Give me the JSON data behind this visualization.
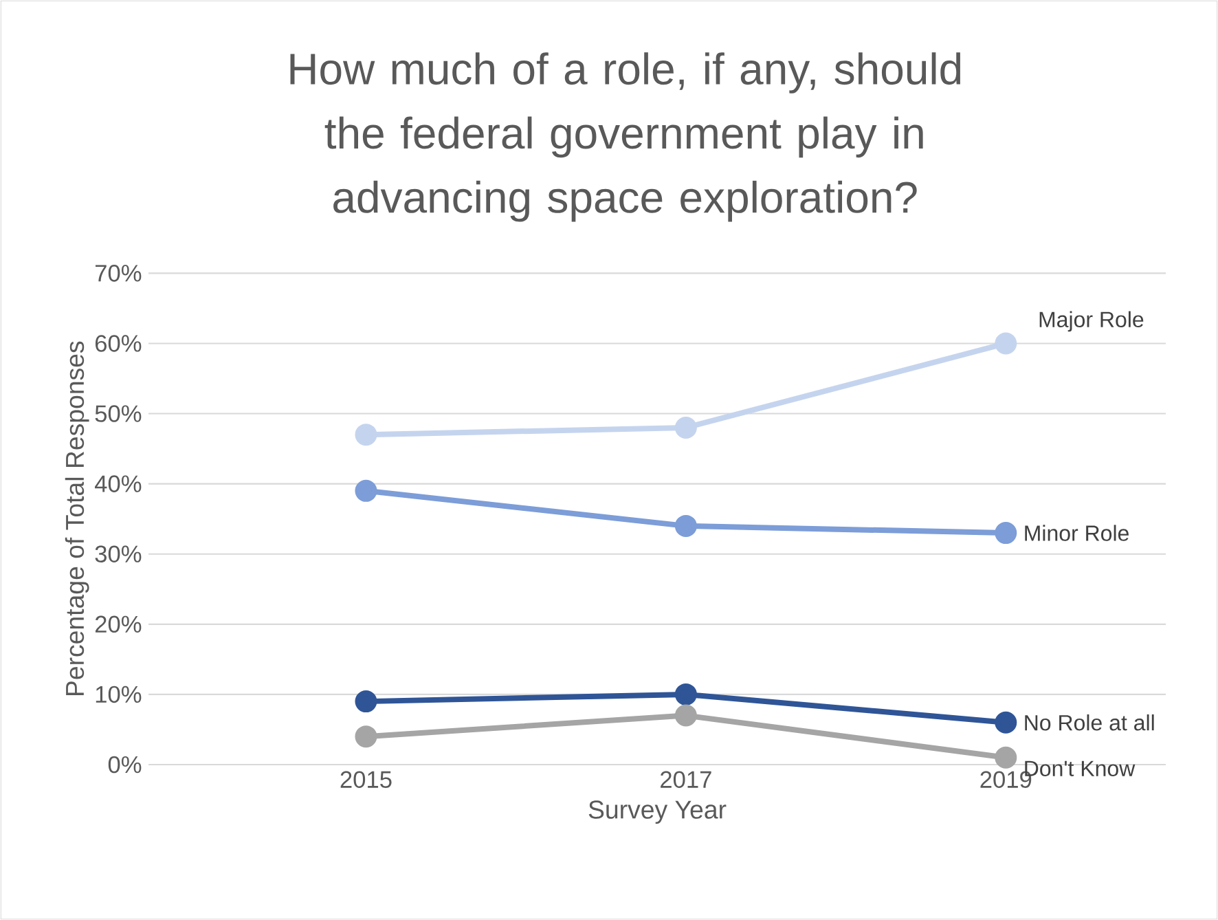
{
  "chart_data": {
    "type": "line",
    "title": "How much of a role, if any, should the federal government play in advancing space exploration?",
    "xlabel": "Survey Year",
    "ylabel": "Percentage of Total Responses",
    "categories": [
      "2015",
      "2017",
      "2019"
    ],
    "series": [
      {
        "name": "Major Role",
        "color": "#c5d4ee",
        "values": [
          47,
          48,
          60
        ]
      },
      {
        "name": "Minor Role",
        "color": "#7c9dd8",
        "values": [
          39,
          34,
          33
        ]
      },
      {
        "name": "No Role at all",
        "color": "#2f5597",
        "values": [
          9,
          10,
          6
        ]
      },
      {
        "name": "Don't Know",
        "color": "#a5a5a5",
        "values": [
          4,
          7,
          1
        ]
      }
    ],
    "ylim": [
      0,
      70
    ],
    "yticks": [
      {
        "value": 0,
        "label": "0%"
      },
      {
        "value": 10,
        "label": "10%"
      },
      {
        "value": 20,
        "label": "20%"
      },
      {
        "value": 30,
        "label": "30%"
      },
      {
        "value": 40,
        "label": "40%"
      },
      {
        "value": 50,
        "label": "50%"
      },
      {
        "value": 60,
        "label": "60%"
      },
      {
        "value": 70,
        "label": "70%"
      }
    ],
    "grid": "y",
    "legend": false,
    "marker": "circle",
    "line_style": "solid"
  }
}
